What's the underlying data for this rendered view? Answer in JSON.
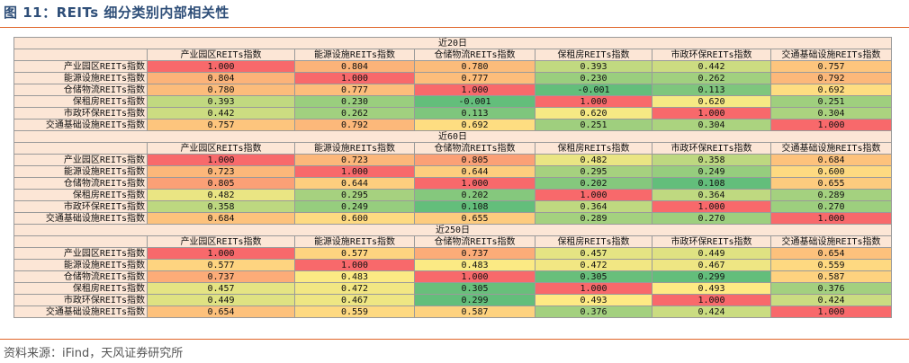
{
  "figure": {
    "title": "图 11：REITs 细分类别内部相关性",
    "source": "资料来源：iFind，天风证券研究所"
  },
  "columns": [
    "产业园区REITs指数",
    "能源设施REITs指数",
    "仓储物流REITs指数",
    "保租房REITs指数",
    "市政环保REITs指数",
    "交通基础设施REITs指数"
  ],
  "rows": [
    "产业园区REITs指数",
    "能源设施REITs指数",
    "仓储物流REITs指数",
    "保租房REITs指数",
    "市政环保REITs指数",
    "交通基础设施REITs指数"
  ],
  "sections": [
    {
      "label": "近20日",
      "values": [
        [
          "1.000",
          "0.804",
          "0.780",
          "0.393",
          "0.442",
          "0.757"
        ],
        [
          "0.804",
          "1.000",
          "0.777",
          "0.230",
          "0.262",
          "0.792"
        ],
        [
          "0.780",
          "0.777",
          "1.000",
          "-0.001",
          "0.113",
          "0.692"
        ],
        [
          "0.393",
          "0.230",
          "-0.001",
          "1.000",
          "0.620",
          "0.251"
        ],
        [
          "0.442",
          "0.262",
          "0.113",
          "0.620",
          "1.000",
          "0.304"
        ],
        [
          "0.757",
          "0.792",
          "0.692",
          "0.251",
          "0.304",
          "1.000"
        ]
      ]
    },
    {
      "label": "近60日",
      "values": [
        [
          "1.000",
          "0.723",
          "0.805",
          "0.482",
          "0.358",
          "0.684"
        ],
        [
          "0.723",
          "1.000",
          "0.644",
          "0.295",
          "0.249",
          "0.600"
        ],
        [
          "0.805",
          "0.644",
          "1.000",
          "0.202",
          "0.108",
          "0.655"
        ],
        [
          "0.482",
          "0.295",
          "0.202",
          "1.000",
          "0.364",
          "0.289"
        ],
        [
          "0.358",
          "0.249",
          "0.108",
          "0.364",
          "1.000",
          "0.270"
        ],
        [
          "0.684",
          "0.600",
          "0.655",
          "0.289",
          "0.270",
          "1.000"
        ]
      ]
    },
    {
      "label": "近250日",
      "values": [
        [
          "1.000",
          "0.577",
          "0.737",
          "0.457",
          "0.449",
          "0.654"
        ],
        [
          "0.577",
          "1.000",
          "0.483",
          "0.472",
          "0.467",
          "0.559"
        ],
        [
          "0.737",
          "0.483",
          "1.000",
          "0.305",
          "0.299",
          "0.587"
        ],
        [
          "0.457",
          "0.472",
          "0.305",
          "1.000",
          "0.493",
          "0.376"
        ],
        [
          "0.449",
          "0.467",
          "0.299",
          "0.493",
          "1.000",
          "0.424"
        ],
        [
          "0.654",
          "0.559",
          "0.587",
          "0.376",
          "0.424",
          "1.000"
        ]
      ]
    }
  ],
  "colors": {
    "low": "#63be7b",
    "mid": "#ffeb84",
    "high": "#f8696b",
    "accent_rule": "#e0662a",
    "title": "#2f4f79",
    "header_bg": "#fce6d6"
  }
}
